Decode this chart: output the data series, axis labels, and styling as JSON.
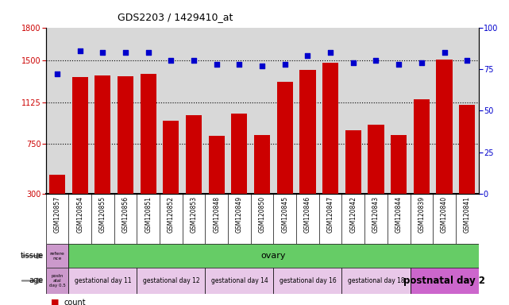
{
  "title": "GDS2203 / 1429410_at",
  "samples": [
    "GSM120857",
    "GSM120854",
    "GSM120855",
    "GSM120856",
    "GSM120851",
    "GSM120852",
    "GSM120853",
    "GSM120848",
    "GSM120849",
    "GSM120850",
    "GSM120845",
    "GSM120846",
    "GSM120847",
    "GSM120842",
    "GSM120843",
    "GSM120844",
    "GSM120839",
    "GSM120840",
    "GSM120841"
  ],
  "counts": [
    470,
    1350,
    1370,
    1360,
    1380,
    960,
    1010,
    820,
    1020,
    830,
    1310,
    1420,
    1480,
    870,
    920,
    830,
    1150,
    1510,
    1100
  ],
  "percentiles": [
    72,
    86,
    85,
    85,
    85,
    80,
    80,
    78,
    78,
    77,
    78,
    83,
    85,
    79,
    80,
    78,
    79,
    85,
    80
  ],
  "ylim_left": [
    300,
    1800
  ],
  "ylim_right": [
    0,
    100
  ],
  "yticks_left": [
    300,
    750,
    1125,
    1500,
    1800
  ],
  "yticks_right": [
    0,
    25,
    50,
    75,
    100
  ],
  "bar_color": "#cc0000",
  "dot_color": "#0000cc",
  "plot_bg_color": "#d8d8d8",
  "xlabel_bg_color": "#d0d0d0",
  "tissue_ref_color": "#cc99cc",
  "tissue_main_color": "#66cc66",
  "age_ref_color": "#cc99cc",
  "age_group_colors": [
    "#e8c8e8",
    "#e8c8e8",
    "#e8c8e8",
    "#e8c8e8",
    "#e8c8e8",
    "#cc66cc"
  ],
  "age_groups": [
    {
      "label": "gestational day 11",
      "span": 3
    },
    {
      "label": "gestational day 12",
      "span": 3
    },
    {
      "label": "gestational day 14",
      "span": 3
    },
    {
      "label": "gestational day 16",
      "span": 3
    },
    {
      "label": "gestational day 18",
      "span": 3
    },
    {
      "label": "postnatal day 2",
      "span": 3
    }
  ]
}
